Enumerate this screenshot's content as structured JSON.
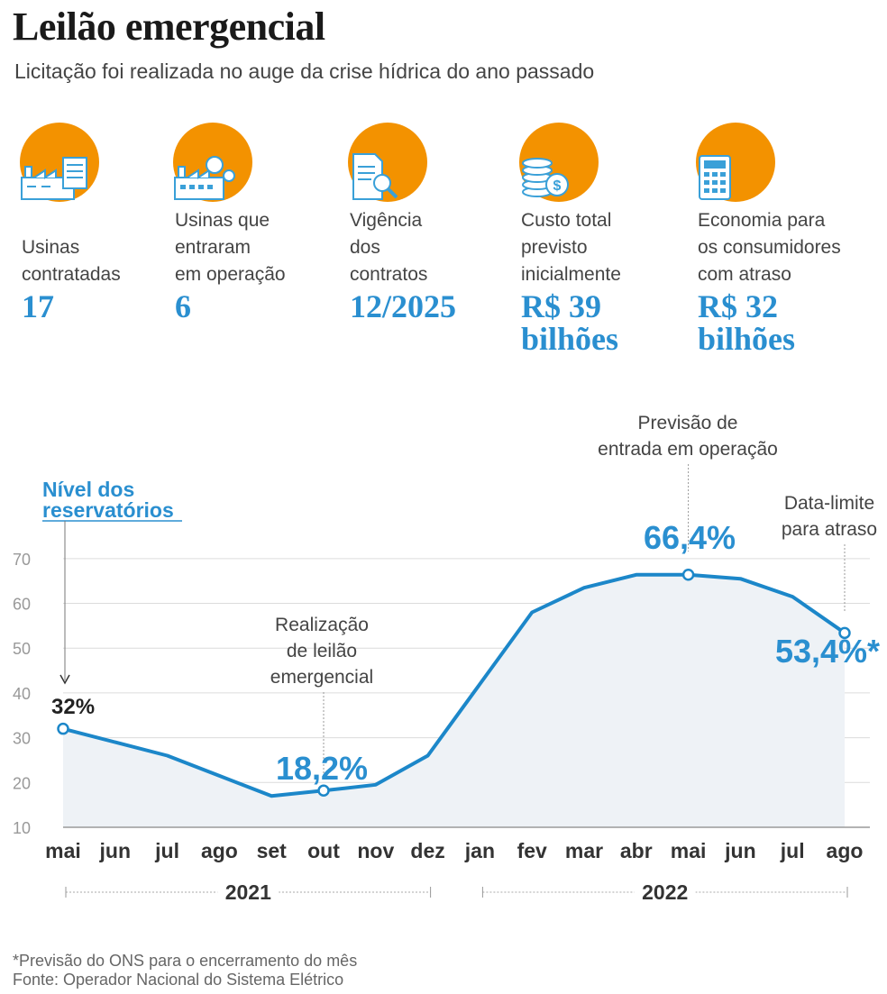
{
  "title": "Leilão emergencial",
  "subtitle": "Licitação foi realizada no auge da crise hídrica do ano passado",
  "stats": [
    {
      "icon": "factory-document-icon",
      "label_lines": [
        "Usinas",
        "contratadas"
      ],
      "value_lines": [
        "17"
      ]
    },
    {
      "icon": "factory-gears-icon",
      "label_lines": [
        "Usinas que",
        "entraram",
        "em operação"
      ],
      "value_lines": [
        "6"
      ]
    },
    {
      "icon": "document-search-icon",
      "label_lines": [
        "Vigência",
        "dos",
        "contratos"
      ],
      "value_lines": [
        "12/2025"
      ]
    },
    {
      "icon": "coins-dollar-icon",
      "label_lines": [
        "Custo total",
        "previsto",
        "inicialmente"
      ],
      "value_lines": [
        "R$ 39",
        "bilhões"
      ]
    },
    {
      "icon": "calculator-icon",
      "label_lines": [
        "Economia para",
        "os consumidores",
        "com atraso"
      ],
      "value_lines": [
        "R$ 32",
        "bilhões"
      ]
    }
  ],
  "colors": {
    "accent_orange": "#f39200",
    "accent_blue": "#2a8fd0",
    "line_blue": "#1c87c9",
    "area_fill": "#eef2f6",
    "icon_blue": "#3aa0d8"
  },
  "chart_data": {
    "type": "area",
    "series_label_lines": [
      "Nível dos",
      "reservatórios"
    ],
    "x": [
      "mai",
      "jun",
      "jul",
      "ago",
      "set",
      "out",
      "nov",
      "dez",
      "jan",
      "fev",
      "mar",
      "abr",
      "mai",
      "jun",
      "jul",
      "ago"
    ],
    "values": [
      32,
      29,
      26,
      21.5,
      17,
      18.2,
      19.5,
      26,
      42,
      58,
      63.5,
      66.4,
      66.4,
      65.5,
      61.5,
      53.4
    ],
    "years": [
      {
        "label": "2021",
        "from": 0,
        "to": 7
      },
      {
        "label": "2022",
        "from": 8,
        "to": 15
      }
    ],
    "ylim": [
      10,
      75
    ],
    "yticks": [
      10,
      20,
      30,
      40,
      50,
      60,
      70
    ],
    "grid": true,
    "highlights": [
      {
        "index": 0,
        "label": "32%",
        "style": "dark"
      },
      {
        "index": 5,
        "label": "18,2%",
        "style": "blue"
      },
      {
        "index": 12,
        "label": "66,4%",
        "style": "blue"
      },
      {
        "index": 15,
        "label": "53,4%*",
        "style": "blue"
      }
    ],
    "annotations": [
      {
        "index": 5,
        "lines": [
          "Realização",
          "de leilão",
          "emergencial"
        ]
      },
      {
        "index": 12,
        "lines": [
          "Previsão de",
          "entrada em operação"
        ]
      },
      {
        "index": 15,
        "lines": [
          "Data-limite",
          "para atraso"
        ]
      }
    ]
  },
  "footnote": "*Previsão do ONS para o encerramento do mês",
  "source": "Fonte: Operador Nacional do Sistema Elétrico"
}
